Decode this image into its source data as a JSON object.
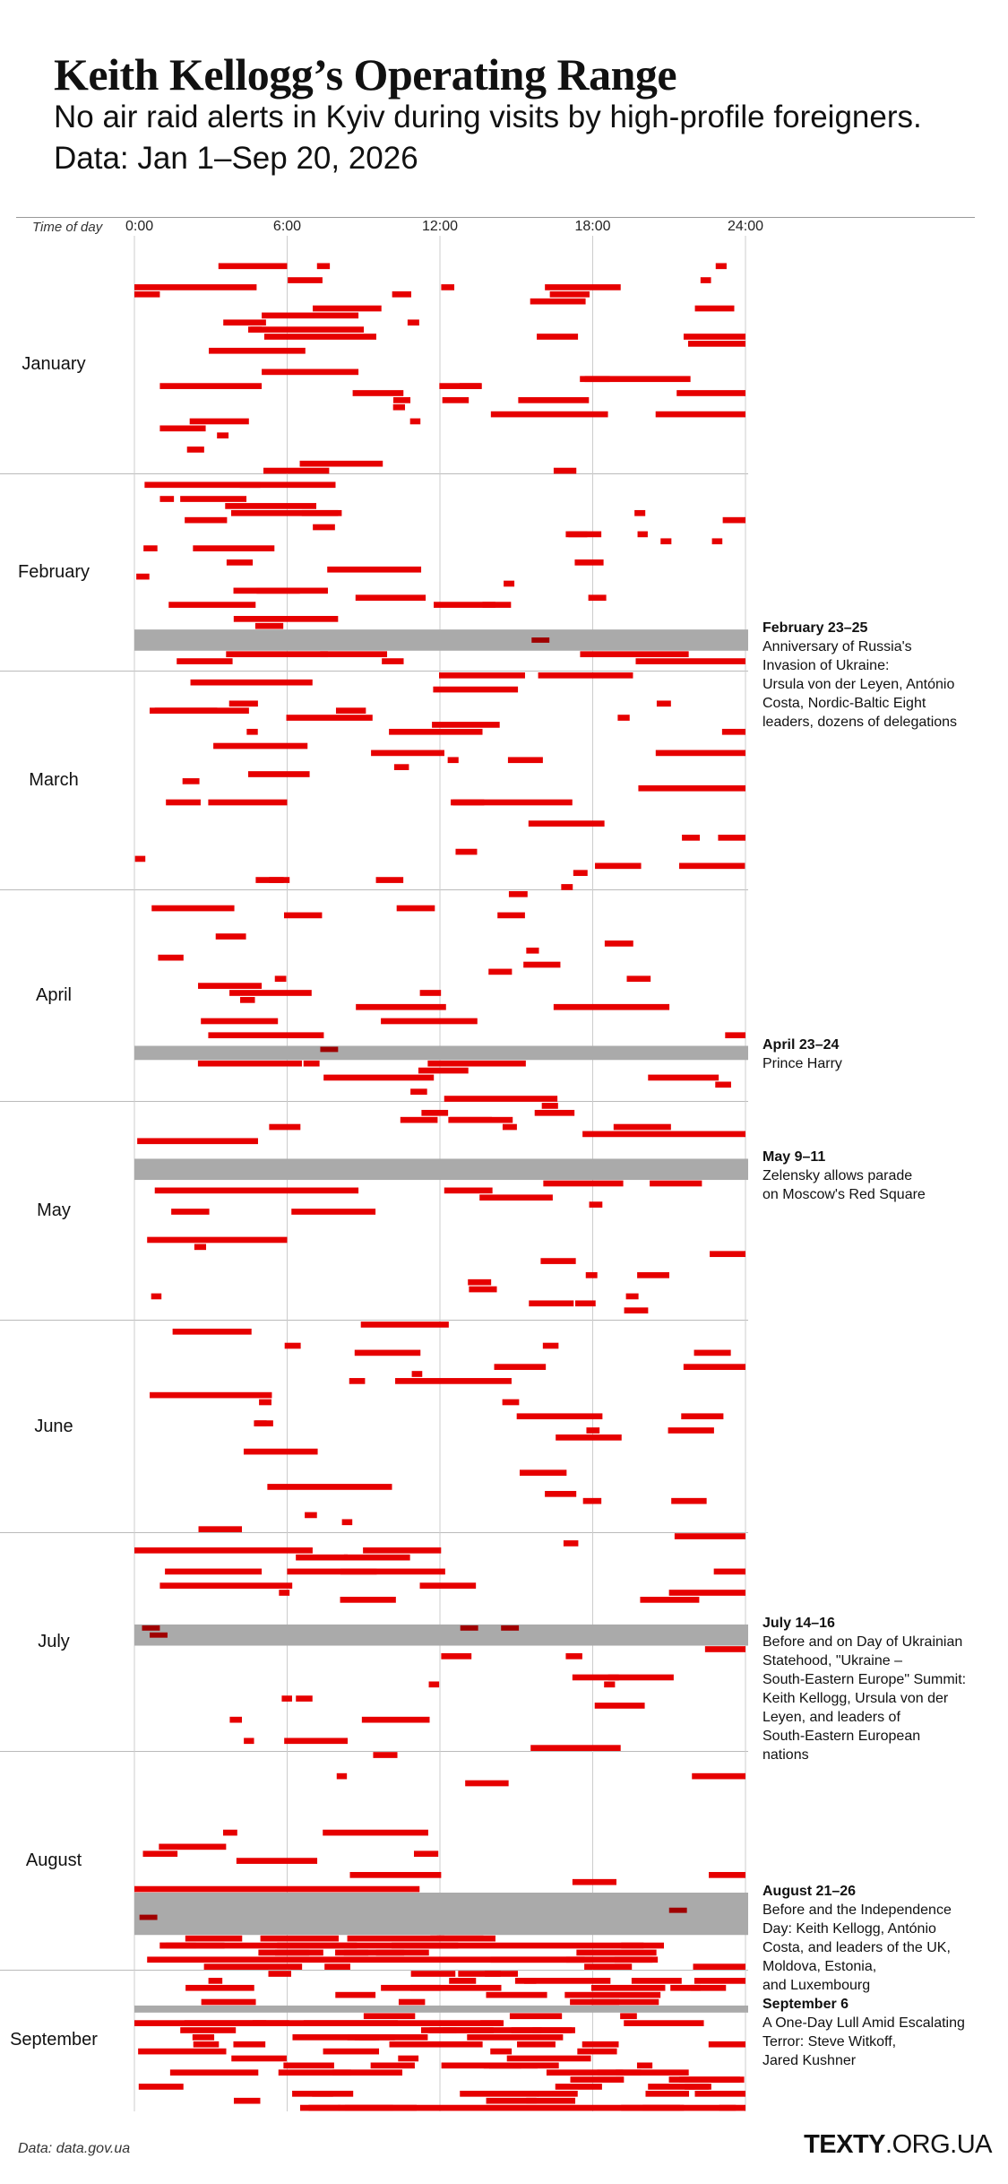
{
  "title": "Keith Kellogg’s Operating Range",
  "subtitle": "No air raid alerts in Kyiv during visits by high-profile foreigners. Data: Jan 1–Sep 20, 2026",
  "axis": {
    "label": "Time of day",
    "ticks": [
      "0:00",
      "6:00",
      "12:00",
      "18:00",
      "24:00"
    ]
  },
  "source": "Data: data.gov.ua",
  "logo": {
    "bold": "TEXTY",
    "rest": ".ORG.UA"
  },
  "colors": {
    "alert": "#e60000",
    "visit": "#aaaaaa",
    "grid": "#cccccc"
  },
  "chart_data": {
    "type": "timeline",
    "x_unit": "hour of day",
    "xlim": [
      0,
      24
    ],
    "period": [
      "2026-01-01",
      "2026-09-20"
    ],
    "months": [
      {
        "name": "January",
        "days": 31
      },
      {
        "name": "February",
        "days": 28
      },
      {
        "name": "March",
        "days": 31
      },
      {
        "name": "April",
        "days": 30
      },
      {
        "name": "May",
        "days": 31
      },
      {
        "name": "June",
        "days": 30
      },
      {
        "name": "July",
        "days": 31
      },
      {
        "name": "August",
        "days": 31
      },
      {
        "name": "September",
        "days": 20
      }
    ],
    "visits": [
      {
        "date": "February 23–25",
        "start": "2026-02-23",
        "end": "2026-02-25",
        "text": "Anniversary of Russia's\nInvasion of Ukraine:\nUrsula von der Leyen, António\nCosta, Nordic-Baltic Eight\nleaders, dozens of delegations"
      },
      {
        "date": "April 23–24",
        "start": "2026-04-23",
        "end": "2026-04-24",
        "text": "Prince Harry"
      },
      {
        "date": "May 9–11",
        "start": "2026-05-09",
        "end": "2026-05-11",
        "text": "Zelensky allows parade\non Moscow's Red Square"
      },
      {
        "date": "July 14–16",
        "start": "2026-07-14",
        "end": "2026-07-16",
        "text": "Before and on Day of Ukrainian\nStatehood, \"Ukraine –\nSouth-Eastern Europe\" Summit:\nKeith Kellogg, Ursula von der\nLeyen, and leaders of\nSouth-Eastern European\nnations"
      },
      {
        "date": "August 21–26",
        "start": "2026-08-21",
        "end": "2026-08-26",
        "text": "Before and the Independence\nDay: Keith Kellogg, António\nCosta, and leaders of the UK,\nMoldova, Estonia,\nand Luxembourg"
      },
      {
        "date": "September 6",
        "start": "2026-09-06",
        "end": "2026-09-06",
        "text": "A One-Day Lull Amid Escalating\nTerror: Steve Witkoff,\nJared Kushner"
      }
    ],
    "alerts_explicit": [
      {
        "date": "2026-01-02",
        "start": 3.3,
        "end": 6.0
      },
      {
        "date": "2026-01-05",
        "start": 0.0,
        "end": 4.8
      },
      {
        "date": "2026-01-06",
        "start": 0.0,
        "end": 1.0
      },
      {
        "date": "2026-01-09",
        "start": 5.0,
        "end": 8.8
      },
      {
        "date": "2026-01-12",
        "start": 5.1,
        "end": 9.5
      },
      {
        "date": "2026-01-17",
        "start": 5.0,
        "end": 8.8
      },
      {
        "date": "2026-01-19",
        "start": 1.0,
        "end": 5.0
      },
      {
        "date": "2026-01-23",
        "start": 14.0,
        "end": 18.6
      },
      {
        "date": "2026-01-25",
        "start": 1.0,
        "end": 2.8
      },
      {
        "date": "2026-02-02",
        "start": 0.4,
        "end": 7.9
      },
      {
        "date": "2026-02-04",
        "start": 1.8,
        "end": 4.4
      },
      {
        "date": "2026-02-06",
        "start": 3.8,
        "end": 8.0
      },
      {
        "date": "2026-02-11",
        "start": 2.3,
        "end": 5.5
      },
      {
        "date": "2026-02-17",
        "start": 4.8,
        "end": 7.6
      },
      {
        "date": "2026-02-21",
        "start": 3.9,
        "end": 8.0
      },
      {
        "date": "2026-02-26",
        "start": 3.6,
        "end": 7.6
      },
      {
        "date": "2026-03-06",
        "start": 0.8,
        "end": 4.5
      },
      {
        "date": "2026-03-11",
        "start": 3.1,
        "end": 6.8
      },
      {
        "date": "2026-03-19",
        "start": 2.9,
        "end": 6.0
      },
      {
        "date": "2026-03-19",
        "start": 12.5,
        "end": 17.2
      },
      {
        "date": "2026-04-03",
        "start": 10.3,
        "end": 11.8
      },
      {
        "date": "2026-04-14",
        "start": 2.5,
        "end": 5.0
      },
      {
        "date": "2026-05-05",
        "start": 17.6,
        "end": 24.0
      },
      {
        "date": "2026-05-13",
        "start": 0.8,
        "end": 8.8
      },
      {
        "date": "2026-05-20",
        "start": 0.5,
        "end": 6.0
      },
      {
        "date": "2026-06-02",
        "start": 1.5,
        "end": 4.6
      },
      {
        "date": "2026-06-11",
        "start": 0.6,
        "end": 5.4
      },
      {
        "date": "2026-07-03",
        "start": 0.0,
        "end": 7.0
      },
      {
        "date": "2026-07-06",
        "start": 1.2,
        "end": 5.0
      },
      {
        "date": "2026-07-08",
        "start": 1.0,
        "end": 6.2
      },
      {
        "date": "2026-08-20",
        "start": 0.0,
        "end": 11.2
      },
      {
        "date": "2026-08-28",
        "start": 1.0,
        "end": 20.0
      },
      {
        "date": "2026-08-30",
        "start": 0.5,
        "end": 18.0
      },
      {
        "date": "2026-09-08",
        "start": 0.0,
        "end": 14.5
      },
      {
        "date": "2026-09-20",
        "start": 8.0,
        "end": 24.0
      }
    ]
  }
}
